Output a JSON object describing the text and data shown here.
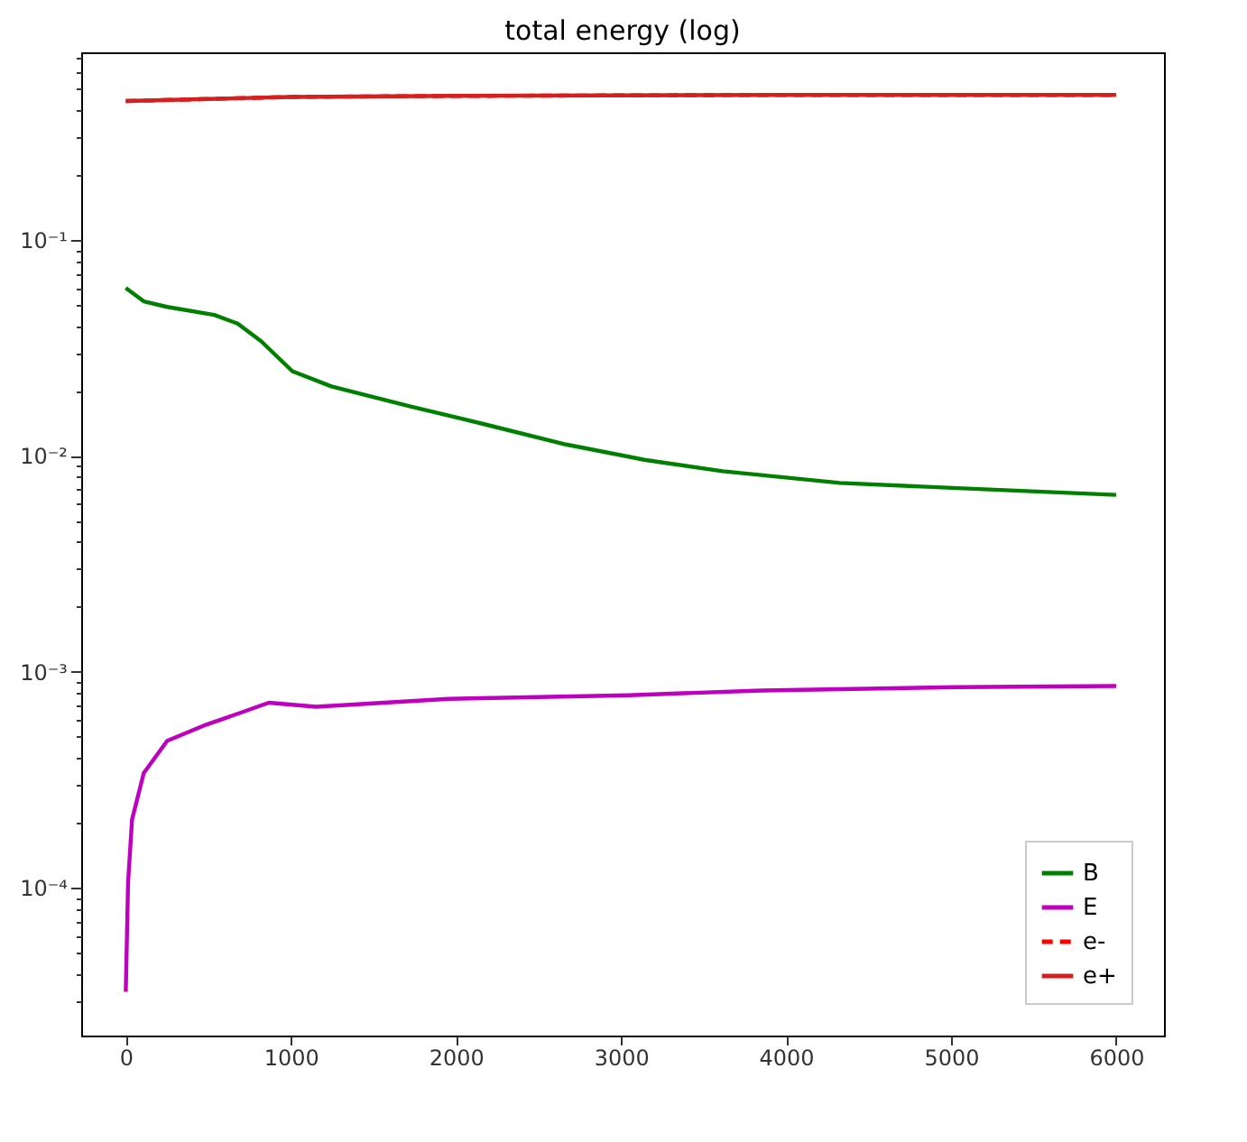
{
  "chart_data": {
    "type": "line",
    "title": "total energy (log)",
    "log": "y",
    "grid": false,
    "legend": "bottom right",
    "marker": "none",
    "xlim": [
      -270,
      6290
    ],
    "xticks": [
      0,
      1000,
      2000,
      3000,
      4000,
      5000,
      6000
    ],
    "ylim": [
      2.07e-05,
      0.74
    ],
    "yticks": [
      {
        "value": 3e-05,
        "label": null
      },
      {
        "value": 4e-05,
        "label": null
      },
      {
        "value": 5e-05,
        "label": null
      },
      {
        "value": 6e-05,
        "label": null
      },
      {
        "value": 7e-05,
        "label": null
      },
      {
        "value": 8e-05,
        "label": null
      },
      {
        "value": 9e-05,
        "label": null
      },
      {
        "value": 0.0001,
        "label": "10⁻⁴"
      },
      {
        "value": 0.0002,
        "label": null
      },
      {
        "value": 0.0003,
        "label": null
      },
      {
        "value": 0.0004,
        "label": null
      },
      {
        "value": 0.0005,
        "label": null
      },
      {
        "value": 0.0006,
        "label": null
      },
      {
        "value": 0.0007,
        "label": null
      },
      {
        "value": 0.0008,
        "label": null
      },
      {
        "value": 0.0009,
        "label": null
      },
      {
        "value": 0.001,
        "label": "10⁻³"
      },
      {
        "value": 0.002,
        "label": null
      },
      {
        "value": 0.003,
        "label": null
      },
      {
        "value": 0.004,
        "label": null
      },
      {
        "value": 0.005,
        "label": null
      },
      {
        "value": 0.006,
        "label": null
      },
      {
        "value": 0.007,
        "label": null
      },
      {
        "value": 0.008,
        "label": null
      },
      {
        "value": 0.009,
        "label": null
      },
      {
        "value": 0.01,
        "label": "10⁻²"
      },
      {
        "value": 0.02,
        "label": null
      },
      {
        "value": 0.03,
        "label": null
      },
      {
        "value": 0.04,
        "label": null
      },
      {
        "value": 0.05,
        "label": null
      },
      {
        "value": 0.06,
        "label": null
      },
      {
        "value": 0.07,
        "label": null
      },
      {
        "value": 0.08,
        "label": null
      },
      {
        "value": 0.09,
        "label": null
      },
      {
        "value": 0.1,
        "label": "10⁻¹"
      },
      {
        "value": 0.2,
        "label": null
      },
      {
        "value": 0.3,
        "label": null
      },
      {
        "value": 0.4,
        "label": null
      },
      {
        "value": 0.5,
        "label": null
      },
      {
        "value": 0.6,
        "label": null
      },
      {
        "value": 0.7,
        "label": null
      }
    ],
    "series": [
      {
        "name": "B",
        "color": "#008000",
        "line_style": "solid",
        "x": [
          0,
          109,
          251,
          536,
          678,
          820,
          1009,
          1246,
          1720,
          2194,
          2668,
          3142,
          3616,
          4327,
          5038,
          6000
        ],
        "values": [
          0.06,
          0.052,
          0.049,
          0.045,
          0.041,
          0.034,
          0.0247,
          0.021,
          0.017,
          0.0139,
          0.0113,
          0.0096,
          0.0085,
          0.0075,
          0.0071,
          0.0066
        ]
      },
      {
        "name": "E",
        "color": "#bf00bf",
        "line_style": "solid",
        "x": [
          0,
          14,
          38,
          109,
          251,
          488,
          678,
          867,
          1152,
          1957,
          3047,
          3853,
          5038,
          6000
        ],
        "values": [
          3.3e-05,
          0.000106,
          0.000207,
          0.00034,
          0.00048,
          0.00057,
          0.00064,
          0.00072,
          0.00069,
          0.00075,
          0.00078,
          0.00082,
          0.00085,
          0.00086
        ]
      },
      {
        "name": "e-",
        "color": "#ff0000",
        "line_style": "dashed",
        "x": [
          0,
          500,
          1000,
          2000,
          4000,
          6000
        ],
        "values": [
          0.44,
          0.45,
          0.46,
          0.465,
          0.47,
          0.47
        ]
      },
      {
        "name": "e+",
        "color": "#d62020",
        "line_style": "solid",
        "x": [
          0,
          500,
          1000,
          2000,
          4000,
          6000
        ],
        "values": [
          0.44,
          0.45,
          0.46,
          0.465,
          0.47,
          0.47
        ]
      }
    ]
  }
}
